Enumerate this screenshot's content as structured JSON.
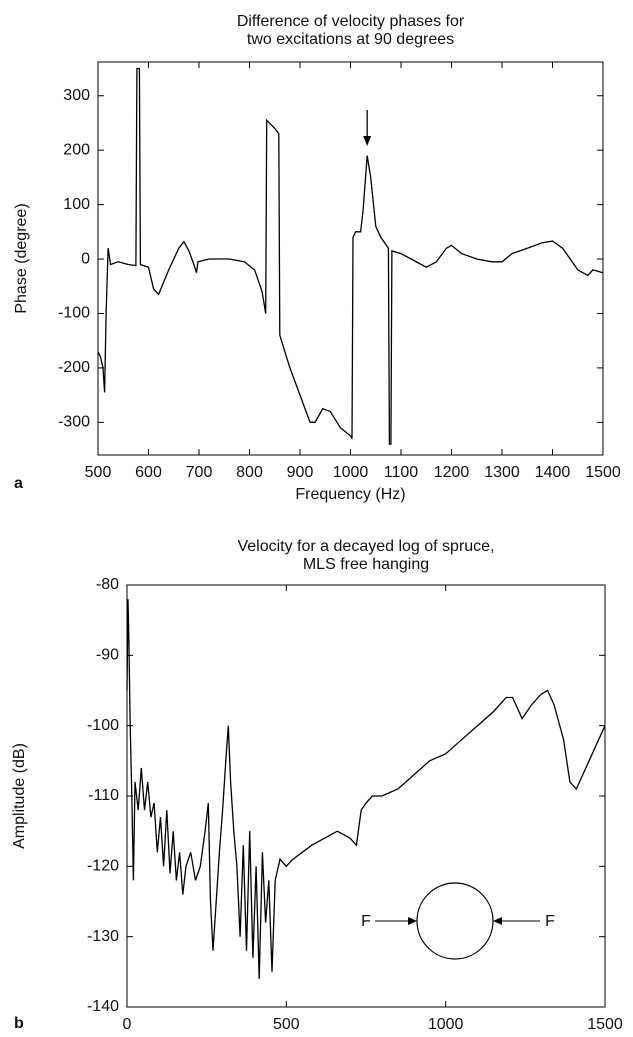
{
  "chart_data": [
    {
      "type": "line",
      "panel_label": "a",
      "title": [
        "Difference of velocity phases for",
        "two excitations at 90 degrees"
      ],
      "xlabel": "Frequency (Hz)",
      "ylabel": "Phase (degree)",
      "xlim": [
        500,
        1500
      ],
      "ylim": [
        -360,
        362
      ],
      "xticks": [
        500,
        600,
        700,
        800,
        900,
        1000,
        1100,
        1200,
        1300,
        1400,
        1500
      ],
      "yticks": [
        -300,
        -200,
        -100,
        0,
        100,
        200,
        300
      ],
      "series": [
        {
          "color": "#000000",
          "x": [
            500,
            505,
            510,
            513,
            516,
            520,
            525,
            540,
            560,
            575,
            577,
            582,
            584,
            600,
            610,
            620,
            640,
            660,
            670,
            680,
            690,
            695,
            698,
            720,
            760,
            790,
            810,
            825,
            832,
            834,
            850,
            858,
            860,
            880,
            900,
            920,
            930,
            945,
            960,
            980,
            1000,
            1003,
            1005,
            1010,
            1020,
            1025,
            1033,
            1040,
            1050,
            1060,
            1075,
            1077,
            1080,
            1082,
            1100,
            1120,
            1150,
            1170,
            1190,
            1200,
            1220,
            1250,
            1280,
            1300,
            1320,
            1350,
            1380,
            1400,
            1420,
            1450,
            1470,
            1480,
            1500
          ],
          "values": [
            -170,
            -180,
            -200,
            -245,
            -100,
            20,
            -10,
            -5,
            -10,
            -12,
            350,
            350,
            -10,
            -15,
            -55,
            -65,
            -20,
            20,
            32,
            15,
            -10,
            -25,
            -5,
            0,
            0,
            -5,
            -20,
            -60,
            -100,
            255,
            240,
            230,
            -140,
            -200,
            -250,
            -300,
            -300,
            -275,
            -280,
            -310,
            -325,
            -330,
            40,
            50,
            50,
            90,
            190,
            150,
            60,
            40,
            20,
            -340,
            -340,
            15,
            10,
            0,
            -15,
            -5,
            20,
            25,
            10,
            0,
            -5,
            -5,
            10,
            20,
            30,
            33,
            20,
            -20,
            -30,
            -20,
            -25
          ]
        }
      ]
    },
    {
      "type": "line",
      "panel_label": "b",
      "title": [
        "Velocity for a decayed log of spruce,",
        "MLS free hanging"
      ],
      "xlabel": "Frequency (Hz)",
      "ylabel": "Amplitude (dB)",
      "xlim": [
        0,
        1500
      ],
      "ylim": [
        -140,
        -80
      ],
      "xticks": [
        0,
        500,
        1000,
        1500
      ],
      "yticks": [
        -140,
        -130,
        -120,
        -110,
        -100,
        -90,
        -80
      ],
      "annotations": [
        "F",
        "F"
      ],
      "series": [
        {
          "color": "#000000",
          "x": [
            0,
            3,
            6,
            10,
            15,
            20,
            25,
            35,
            45,
            55,
            65,
            75,
            85,
            95,
            105,
            115,
            125,
            135,
            145,
            155,
            165,
            175,
            185,
            200,
            215,
            230,
            245,
            255,
            262,
            270,
            280,
            290,
            300,
            310,
            318,
            325,
            335,
            345,
            355,
            365,
            375,
            385,
            395,
            405,
            415,
            425,
            435,
            445,
            455,
            465,
            480,
            500,
            520,
            550,
            580,
            620,
            660,
            700,
            720,
            735,
            750,
            770,
            800,
            850,
            900,
            950,
            1000,
            1050,
            1100,
            1150,
            1190,
            1210,
            1240,
            1270,
            1300,
            1320,
            1340,
            1370,
            1390,
            1410,
            1440,
            1470,
            1500
          ],
          "values": [
            -95,
            -82,
            -88,
            -100,
            -110,
            -122,
            -108,
            -112,
            -106,
            -112,
            -108,
            -113,
            -111,
            -118,
            -113,
            -120,
            -112,
            -121,
            -115,
            -122,
            -118,
            -124,
            -120,
            -118,
            -122,
            -120,
            -115,
            -111,
            -125,
            -132,
            -125,
            -118,
            -112,
            -105,
            -100,
            -108,
            -115,
            -120,
            -130,
            -117,
            -132,
            -115,
            -133,
            -120,
            -136,
            -118,
            -128,
            -122,
            -135,
            -122,
            -119,
            -120,
            -119,
            -118,
            -117,
            -116,
            -115,
            -116,
            -117,
            -112,
            -111,
            -110,
            -110,
            -109,
            -107,
            -105,
            -104,
            -102,
            -100,
            -98,
            -96,
            -96,
            -99,
            -97,
            -95.5,
            -95,
            -97,
            -102,
            -108,
            -109,
            -106,
            -103,
            -100
          ]
        }
      ]
    }
  ]
}
